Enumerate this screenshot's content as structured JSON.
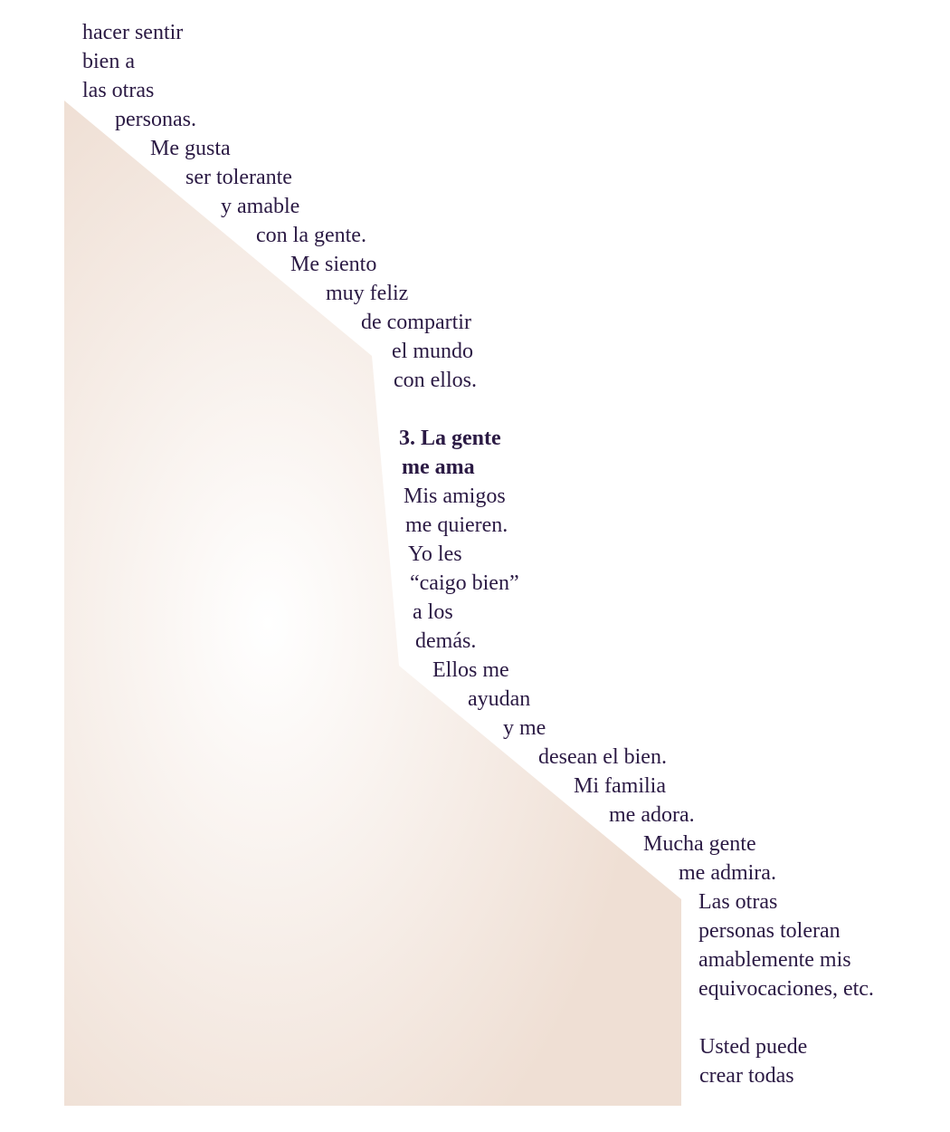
{
  "colors": {
    "text": "#2b1a44",
    "shape_edge": "#efdfd4",
    "shape_center": "#ffffff"
  },
  "lines": [
    {
      "text": "hacer sentir",
      "bold": false
    },
    {
      "text": "bien a",
      "bold": false
    },
    {
      "text": "las otras",
      "bold": false
    },
    {
      "text": "personas.",
      "bold": false
    },
    {
      "text": "Me gusta",
      "bold": false
    },
    {
      "text": "ser tolerante",
      "bold": false
    },
    {
      "text": "y amable",
      "bold": false
    },
    {
      "text": "con la gente.",
      "bold": false
    },
    {
      "text": "Me siento",
      "bold": false
    },
    {
      "text": "muy feliz",
      "bold": false
    },
    {
      "text": "de compartir",
      "bold": false
    },
    {
      "text": "el mundo",
      "bold": false
    },
    {
      "text": "con ellos.",
      "bold": false
    },
    {
      "text": "3. La gente",
      "bold": true
    },
    {
      "text": "me ama",
      "bold": true
    },
    {
      "text": "Mis amigos",
      "bold": false
    },
    {
      "text": "me quieren.",
      "bold": false
    },
    {
      "text": "Yo les",
      "bold": false
    },
    {
      "text": "“caigo bien”",
      "bold": false
    },
    {
      "text": "a los",
      "bold": false
    },
    {
      "text": "demás.",
      "bold": false
    },
    {
      "text": "Ellos me",
      "bold": false
    },
    {
      "text": "ayudan",
      "bold": false
    },
    {
      "text": "y me",
      "bold": false
    },
    {
      "text": "desean el bien.",
      "bold": false
    },
    {
      "text": "Mi familia",
      "bold": false
    },
    {
      "text": "me adora.",
      "bold": false
    },
    {
      "text": "Mucha gente",
      "bold": false
    },
    {
      "text": "me admira.",
      "bold": false
    },
    {
      "text": "Las otras",
      "bold": false
    },
    {
      "text": "personas toleran",
      "bold": false
    },
    {
      "text": "amablemente mis",
      "bold": false
    },
    {
      "text": "equivocaciones, etc.",
      "bold": false
    },
    {
      "text": "Usted puede",
      "bold": false
    },
    {
      "text": "crear todas",
      "bold": false
    }
  ]
}
